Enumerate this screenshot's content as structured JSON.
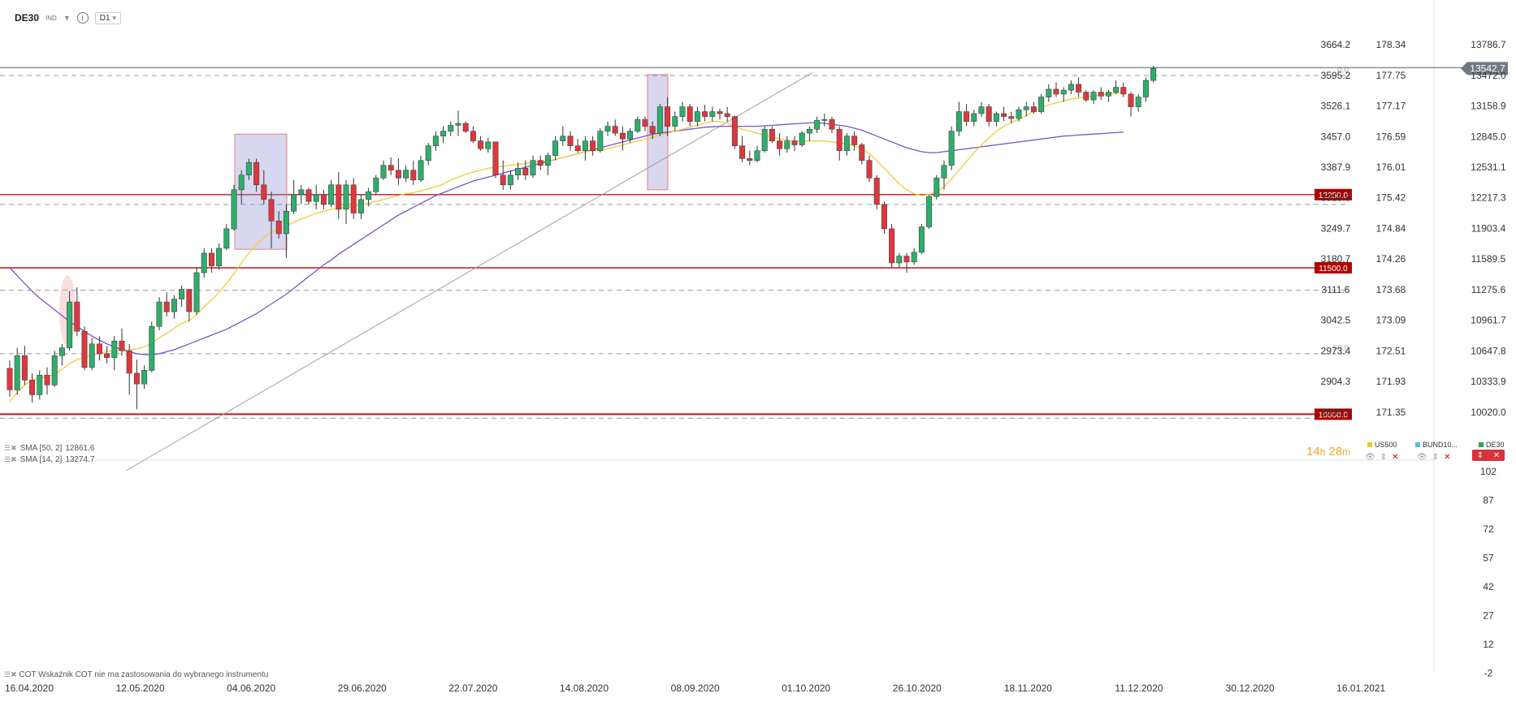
{
  "toolbar": {
    "symbol": "DE30",
    "type_badge": "IND",
    "timeframe": "D1",
    "icons": [
      "chevron-down-icon",
      "info-icon"
    ]
  },
  "indicators": [
    {
      "label": "SMA [50, 2]",
      "value": "12861.6"
    },
    {
      "label": "SMA [14, 2]",
      "value": "13274.7"
    }
  ],
  "timer": {
    "hours": "14",
    "h": "h",
    "minutes": "28",
    "m": "m"
  },
  "instruments": [
    {
      "name": "US500",
      "color": "#f5c518"
    },
    {
      "name": "BUND10...",
      "color": "#5bc0de"
    },
    {
      "name": "DE30",
      "color": "#26a65b"
    }
  ],
  "cot_note": "COT Wskaźnik COT nie ma zastosowania do wybranego instrumentu",
  "colors": {
    "up": "#2eae6b",
    "down": "#e0363d",
    "sma14": "#f2cc3a",
    "sma50": "#7b52c8",
    "level": "#c2161c",
    "last": "#707a84"
  },
  "chart_data": {
    "type": "candlestick",
    "symbol": "DE30",
    "timeframe": "D1",
    "x_tick_labels": [
      "16.04.2020",
      "12.05.2020",
      "04.06.2020",
      "29.06.2020",
      "22.07.2020",
      "14.08.2020",
      "08.09.2020",
      "01.10.2020",
      "26.10.2020",
      "18.11.2020",
      "11.12.2020",
      "30.12.2020",
      "16.01.2021"
    ],
    "y_axis_de30": [
      13786.7,
      13472.0,
      13158.9,
      12845.0,
      12531.1,
      12217.3,
      11903.4,
      11589.5,
      11275.6,
      10961.7,
      10647.8,
      10333.9,
      10020.0
    ],
    "y_axis_pct": [
      "3664.2",
      "3595.2",
      "3526.1",
      "3457.0",
      "3387.9",
      "3318.8",
      "3249.7",
      "3180.7",
      "3111.6",
      "3042.5",
      "2973.4",
      "2904.3",
      "2835.2"
    ],
    "y_axis_us500": [
      "178.34",
      "177.75",
      "177.17",
      "176.59",
      "176.01",
      "175.42",
      "174.84",
      "174.26",
      "173.68",
      "173.09",
      "172.51",
      "171.93",
      "171.35"
    ],
    "sub_axis": [
      "102",
      "87",
      "72",
      "57",
      "42",
      "27",
      "12",
      "-2"
    ],
    "last_price": "13542.7",
    "levels": [
      {
        "value": 12250.0,
        "label": "12250.0"
      },
      {
        "value": 11500.0,
        "label": "11500.0"
      },
      {
        "value": 10000.0,
        "label": "10000.0"
      }
    ],
    "fib_labels": [
      {
        "value": 13470,
        "label": "0.0"
      },
      {
        "value": 10620,
        "label": "50.0"
      },
      {
        "value": 9960,
        "label": "61.8"
      }
    ],
    "ohlc": [
      [
        10470,
        10550,
        10180,
        10250
      ],
      [
        10250,
        10680,
        10200,
        10600
      ],
      [
        10600,
        10700,
        10300,
        10350
      ],
      [
        10350,
        10420,
        10120,
        10200
      ],
      [
        10200,
        10450,
        10150,
        10400
      ],
      [
        10400,
        10480,
        10200,
        10300
      ],
      [
        10300,
        10650,
        10280,
        10600
      ],
      [
        10600,
        10720,
        10500,
        10680
      ],
      [
        10680,
        11260,
        10650,
        11150
      ],
      [
        11150,
        11300,
        10800,
        10850
      ],
      [
        10850,
        10900,
        10450,
        10480
      ],
      [
        10480,
        10780,
        10450,
        10720
      ],
      [
        10720,
        10800,
        10550,
        10620
      ],
      [
        10620,
        10700,
        10520,
        10580
      ],
      [
        10580,
        10800,
        10450,
        10750
      ],
      [
        10750,
        10880,
        10600,
        10650
      ],
      [
        10650,
        10720,
        10200,
        10420
      ],
      [
        10420,
        10560,
        10050,
        10310
      ],
      [
        10310,
        10500,
        10260,
        10450
      ],
      [
        10450,
        10950,
        10430,
        10900
      ],
      [
        10900,
        11200,
        10860,
        11150
      ],
      [
        11150,
        11250,
        11000,
        11050
      ],
      [
        11050,
        11220,
        10980,
        11180
      ],
      [
        11180,
        11320,
        11100,
        11280
      ],
      [
        11280,
        11280,
        10950,
        11050
      ],
      [
        11050,
        11500,
        11020,
        11450
      ],
      [
        11450,
        11700,
        11400,
        11650
      ],
      [
        11650,
        11700,
        11450,
        11520
      ],
      [
        11520,
        11750,
        11480,
        11700
      ],
      [
        11700,
        11950,
        11680,
        11900
      ],
      [
        11900,
        12350,
        11880,
        12300
      ],
      [
        12300,
        12500,
        12150,
        12450
      ],
      [
        12450,
        12620,
        12400,
        12580
      ],
      [
        12580,
        12620,
        12280,
        12350
      ],
      [
        12350,
        12500,
        12150,
        12200
      ],
      [
        12200,
        12280,
        11700,
        11980
      ],
      [
        11980,
        12080,
        11800,
        11850
      ],
      [
        11850,
        12150,
        11600,
        12080
      ],
      [
        12080,
        12400,
        12050,
        12250
      ],
      [
        12250,
        12350,
        12150,
        12300
      ],
      [
        12300,
        12320,
        12150,
        12180
      ],
      [
        12180,
        12350,
        12100,
        12250
      ],
      [
        12250,
        12300,
        12100,
        12150
      ],
      [
        12150,
        12400,
        12120,
        12350
      ],
      [
        12350,
        12480,
        12000,
        12100
      ],
      [
        12100,
        12400,
        11950,
        12350
      ],
      [
        12350,
        12420,
        12000,
        12060
      ],
      [
        12060,
        12250,
        12000,
        12200
      ],
      [
        12200,
        12320,
        12130,
        12280
      ],
      [
        12280,
        12450,
        12250,
        12420
      ],
      [
        12420,
        12600,
        12400,
        12550
      ],
      [
        12550,
        12630,
        12450,
        12500
      ],
      [
        12500,
        12620,
        12350,
        12420
      ],
      [
        12420,
        12550,
        12380,
        12500
      ],
      [
        12500,
        12600,
        12350,
        12400
      ],
      [
        12400,
        12650,
        12380,
        12600
      ],
      [
        12600,
        12780,
        12550,
        12750
      ],
      [
        12750,
        12900,
        12700,
        12850
      ],
      [
        12850,
        12950,
        12780,
        12900
      ],
      [
        12900,
        13000,
        12850,
        12960
      ],
      [
        12960,
        13110,
        12850,
        12980
      ],
      [
        12980,
        13000,
        12880,
        12900
      ],
      [
        12900,
        12950,
        12780,
        12800
      ],
      [
        12800,
        12850,
        12700,
        12720
      ],
      [
        12720,
        12830,
        12680,
        12790
      ],
      [
        12790,
        12780,
        12420,
        12450
      ],
      [
        12450,
        12600,
        12300,
        12350
      ],
      [
        12350,
        12500,
        12300,
        12450
      ],
      [
        12450,
        12580,
        12400,
        12520
      ],
      [
        12520,
        12600,
        12400,
        12450
      ],
      [
        12450,
        12650,
        12420,
        12600
      ],
      [
        12600,
        12650,
        12500,
        12550
      ],
      [
        12550,
        12680,
        12450,
        12650
      ],
      [
        12650,
        12850,
        12600,
        12800
      ],
      [
        12800,
        12950,
        12750,
        12850
      ],
      [
        12850,
        12900,
        12700,
        12750
      ],
      [
        12750,
        12820,
        12680,
        12700
      ],
      [
        12700,
        12850,
        12600,
        12800
      ],
      [
        12800,
        12850,
        12650,
        12700
      ],
      [
        12700,
        12930,
        12680,
        12900
      ],
      [
        12900,
        13000,
        12850,
        12950
      ],
      [
        12950,
        13020,
        12850,
        12880
      ],
      [
        12880,
        12950,
        12700,
        12820
      ],
      [
        12820,
        12930,
        12780,
        12900
      ],
      [
        12900,
        13050,
        12880,
        13020
      ],
      [
        13020,
        13050,
        12900,
        12950
      ],
      [
        12950,
        13000,
        12820,
        12880
      ],
      [
        12880,
        13180,
        12850,
        13150
      ],
      [
        13150,
        13250,
        12850,
        12950
      ],
      [
        12950,
        13100,
        12900,
        13050
      ],
      [
        13050,
        13200,
        13000,
        13150
      ],
      [
        13150,
        13180,
        12950,
        13000
      ],
      [
        13000,
        13150,
        12950,
        13100
      ],
      [
        13100,
        13170,
        13000,
        13050
      ],
      [
        13050,
        13150,
        13000,
        13100
      ],
      [
        13100,
        13130,
        13020,
        13080
      ],
      [
        13080,
        13150,
        13000,
        13050
      ],
      [
        13050,
        13060,
        12720,
        12750
      ],
      [
        12750,
        12850,
        12580,
        12620
      ],
      [
        12620,
        12700,
        12550,
        12600
      ],
      [
        12600,
        12750,
        12580,
        12700
      ],
      [
        12700,
        12950,
        12680,
        12920
      ],
      [
        12920,
        12950,
        12780,
        12800
      ],
      [
        12800,
        12880,
        12650,
        12720
      ],
      [
        12720,
        12850,
        12680,
        12800
      ],
      [
        12800,
        12850,
        12700,
        12760
      ],
      [
        12760,
        12900,
        12740,
        12880
      ],
      [
        12880,
        12950,
        12800,
        12920
      ],
      [
        12920,
        13050,
        12880,
        13010
      ],
      [
        13010,
        13080,
        12950,
        13020
      ],
      [
        13020,
        13050,
        12880,
        12920
      ],
      [
        12920,
        12950,
        12600,
        12700
      ],
      [
        12700,
        12880,
        12650,
        12850
      ],
      [
        12850,
        12900,
        12700,
        12760
      ],
      [
        12760,
        12780,
        12560,
        12600
      ],
      [
        12600,
        12650,
        12380,
        12420
      ],
      [
        12420,
        12450,
        12100,
        12150
      ],
      [
        12150,
        12180,
        11850,
        11900
      ],
      [
        11900,
        11950,
        11500,
        11550
      ],
      [
        11550,
        11650,
        11500,
        11620
      ],
      [
        11620,
        11650,
        11450,
        11560
      ],
      [
        11560,
        11700,
        11530,
        11660
      ],
      [
        11660,
        11950,
        11640,
        11920
      ],
      [
        11920,
        12250,
        11900,
        12230
      ],
      [
        12230,
        12450,
        12200,
        12420
      ],
      [
        12420,
        12600,
        12300,
        12550
      ],
      [
        12550,
        12950,
        12500,
        12900
      ],
      [
        12900,
        13200,
        12850,
        13100
      ],
      [
        13100,
        13180,
        12950,
        13000
      ],
      [
        13000,
        13120,
        12950,
        13080
      ],
      [
        13080,
        13200,
        13050,
        13150
      ],
      [
        13150,
        13180,
        12950,
        13000
      ],
      [
        13000,
        13100,
        12950,
        13080
      ],
      [
        13080,
        13150,
        13000,
        13050
      ],
      [
        13050,
        13100,
        12980,
        13030
      ],
      [
        13030,
        13150,
        13000,
        13120
      ],
      [
        13120,
        13200,
        13050,
        13150
      ],
      [
        13150,
        13200,
        13080,
        13100
      ],
      [
        13100,
        13280,
        13080,
        13250
      ],
      [
        13250,
        13380,
        13200,
        13330
      ],
      [
        13330,
        13400,
        13250,
        13280
      ],
      [
        13280,
        13350,
        13200,
        13320
      ],
      [
        13320,
        13420,
        13280,
        13380
      ],
      [
        13380,
        13450,
        13250,
        13300
      ],
      [
        13300,
        13320,
        13200,
        13220
      ],
      [
        13220,
        13320,
        13180,
        13300
      ],
      [
        13300,
        13350,
        13220,
        13260
      ],
      [
        13260,
        13320,
        13200,
        13300
      ],
      [
        13300,
        13420,
        13280,
        13350
      ],
      [
        13350,
        13400,
        13250,
        13280
      ],
      [
        13280,
        13300,
        13050,
        13150
      ],
      [
        13150,
        13280,
        13100,
        13250
      ],
      [
        13250,
        13450,
        13200,
        13420
      ],
      [
        13420,
        13570,
        13400,
        13542.7
      ]
    ],
    "sma14": [
      10130,
      10220,
      10300,
      10350,
      10370,
      10380,
      10410,
      10460,
      10520,
      10560,
      10580,
      10610,
      10620,
      10640,
      10650,
      10660,
      10660,
      10670,
      10690,
      10730,
      10780,
      10830,
      10880,
      10930,
      10960,
      11020,
      11100,
      11170,
      11250,
      11340,
      11440,
      11550,
      11650,
      11740,
      11810,
      11860,
      11900,
      11930,
      11970,
      12000,
      12030,
      12060,
      12080,
      12100,
      12110,
      12120,
      12130,
      12150,
      12160,
      12180,
      12200,
      12220,
      12240,
      12260,
      12270,
      12290,
      12310,
      12330,
      12360,
      12400,
      12430,
      12460,
      12480,
      12500,
      12520,
      12530,
      12540,
      12550,
      12560,
      12570,
      12580,
      12590,
      12600,
      12610,
      12630,
      12650,
      12670,
      12690,
      12700,
      12710,
      12720,
      12740,
      12760,
      12780,
      12800,
      12820,
      12840,
      12860,
      12880,
      12900,
      12920,
      12940,
      12960,
      12980,
      13000,
      13000,
      12980,
      12950,
      12920,
      12900,
      12880,
      12860,
      12840,
      12820,
      12810,
      12800,
      12800,
      12800,
      12800,
      12800,
      12790,
      12780,
      12770,
      12750,
      12720,
      12670,
      12600,
      12520,
      12440,
      12360,
      12300,
      12260,
      12240,
      12250,
      12280,
      12330,
      12410,
      12500,
      12590,
      12680,
      12760,
      12830,
      12900,
      12950,
      12990,
      13020,
      13060,
      13100,
      13140,
      13170,
      13190,
      13210,
      13230,
      13240,
      13250,
      13260,
      13270,
      13280,
      13290,
      13300
    ],
    "sma50": [
      11500,
      11420,
      11340,
      11260,
      11190,
      11130,
      11070,
      11010,
      10950,
      10900,
      10850,
      10800,
      10760,
      10720,
      10690,
      10660,
      10640,
      10620,
      10610,
      10610,
      10620,
      10640,
      10660,
      10690,
      10720,
      10750,
      10780,
      10810,
      10840,
      10870,
      10910,
      10950,
      10990,
      11030,
      11080,
      11130,
      11180,
      11230,
      11290,
      11350,
      11410,
      11470,
      11530,
      11580,
      11640,
      11690,
      11740,
      11790,
      11840,
      11890,
      11940,
      11990,
      12040,
      12080,
      12120,
      12160,
      12200,
      12240,
      12270,
      12300,
      12330,
      12360,
      12390,
      12410,
      12430,
      12450,
      12470,
      12490,
      12510,
      12530,
      12550,
      12570,
      12590,
      12610,
      12630,
      12650,
      12670,
      12690,
      12710,
      12730,
      12750,
      12770,
      12790,
      12810,
      12830,
      12850,
      12870,
      12880,
      12890,
      12900,
      12910,
      12920,
      12930,
      12940,
      12945,
      12950,
      12950,
      12950,
      12950,
      12950,
      12950,
      12955,
      12960,
      12965,
      12970,
      12975,
      12980,
      12985,
      12985,
      12980,
      12970,
      12960,
      12950,
      12930,
      12910,
      12880,
      12850,
      12820,
      12790,
      12760,
      12730,
      12710,
      12690,
      12680,
      12680,
      12690,
      12700,
      12710,
      12720,
      12730,
      12740,
      12750,
      12760,
      12770,
      12780,
      12790,
      12800,
      12810,
      12820,
      12830,
      12840,
      12850,
      12855,
      12860,
      12865,
      12870,
      12875,
      12880,
      12885,
      12890
    ]
  }
}
